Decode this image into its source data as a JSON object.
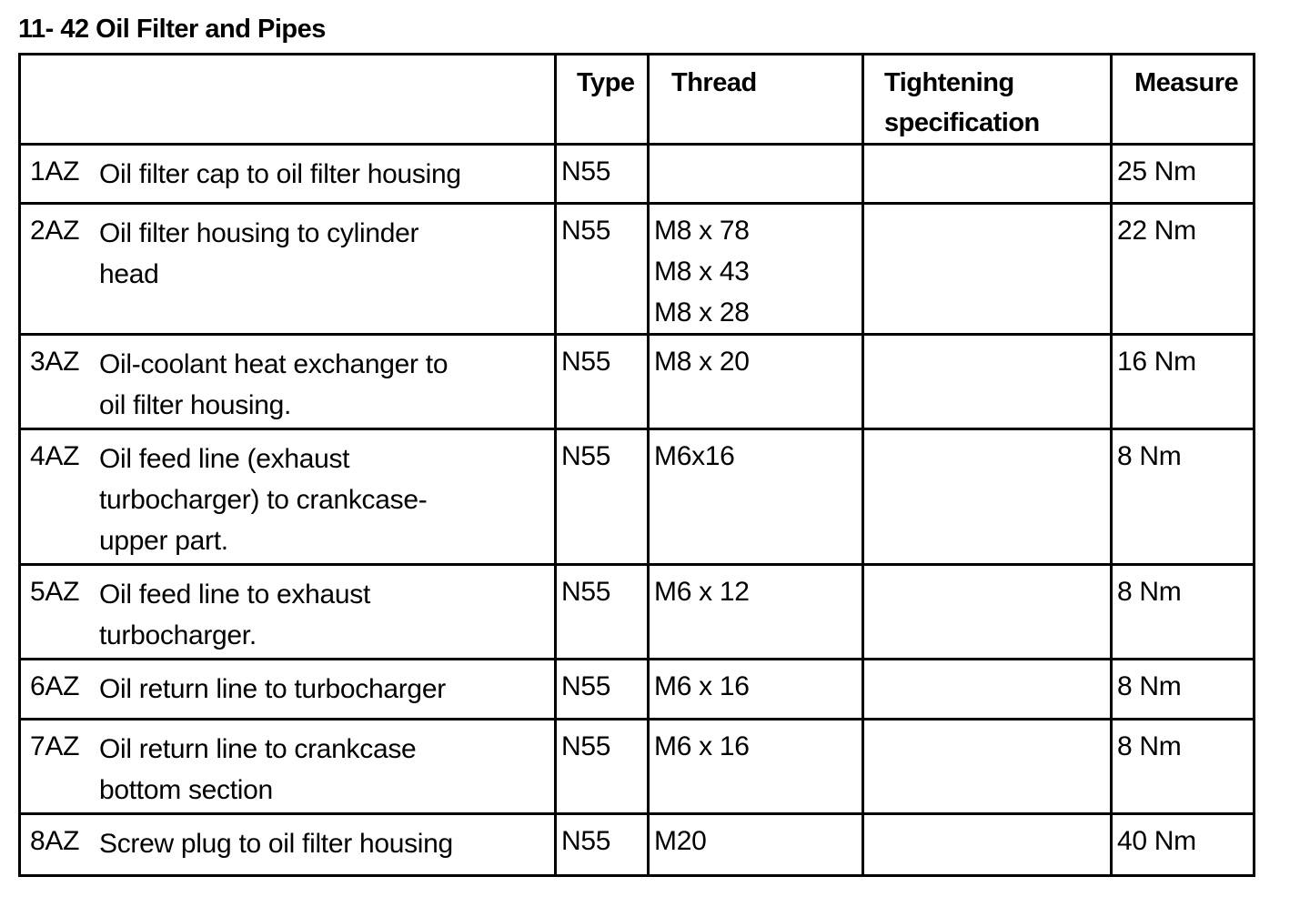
{
  "title": "11- 42 Oil Filter and Pipes",
  "headers": [
    "",
    "Type",
    "Thread",
    "Tightening specification",
    "Measure"
  ],
  "header_lines": {
    "type": "Type",
    "thread": "Thread",
    "tightening_1": "Tightening",
    "tightening_2": "specification",
    "measure": "Measure"
  },
  "rows": [
    {
      "code": "1AZ",
      "desc": [
        "Oil filter cap to oil filter housing"
      ],
      "type": "N55",
      "thread": [],
      "tightening": "",
      "measure": "25 Nm"
    },
    {
      "code": "2AZ",
      "desc": [
        "Oil filter housing to cylinder",
        "head"
      ],
      "type": "N55",
      "thread": [
        "M8 x 78",
        "M8 x 43",
        "M8 x 28"
      ],
      "tightening": "",
      "measure": "22 Nm"
    },
    {
      "code": "3AZ",
      "desc": [
        "Oil-coolant heat exchanger to",
        "oil filter housing."
      ],
      "type": "N55",
      "thread": [
        "M8 x 20"
      ],
      "tightening": "",
      "measure": "16 Nm"
    },
    {
      "code": "4AZ",
      "desc": [
        "Oil feed line (exhaust",
        "turbocharger) to crankcase-",
        "upper part."
      ],
      "type": "N55",
      "thread": [
        "M6x16"
      ],
      "tightening": "",
      "measure": "8 Nm"
    },
    {
      "code": "5AZ",
      "desc": [
        "Oil feed line to exhaust",
        "turbocharger."
      ],
      "type": "N55",
      "thread": [
        "M6 x 12"
      ],
      "tightening": "",
      "measure": "8 Nm"
    },
    {
      "code": "6AZ",
      "desc": [
        "Oil return line to turbocharger"
      ],
      "type": "N55",
      "thread": [
        "M6 x 16"
      ],
      "tightening": "",
      "measure": "8 Nm"
    },
    {
      "code": "7AZ",
      "desc": [
        "Oil return line to crankcase",
        "bottom section"
      ],
      "type": "N55",
      "thread": [
        "M6 x 16"
      ],
      "tightening": "",
      "measure": "8 Nm"
    },
    {
      "code": "8AZ",
      "desc": [
        "Screw plug to oil filter housing"
      ],
      "type": "N55",
      "thread": [
        "M20"
      ],
      "tightening": "",
      "measure": "40 Nm"
    }
  ]
}
